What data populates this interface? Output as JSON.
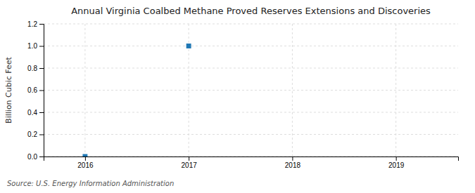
{
  "chart_data": {
    "type": "scatter",
    "title": "Annual Virginia Coalbed Methane Proved Reserves Extensions and Discoveries",
    "ylabel": "Billion Cubic Feet",
    "annotations": [
      "Source: U.S. Energy Information Administration"
    ],
    "x": [
      2016,
      2017
    ],
    "values": [
      0.0,
      1.0
    ],
    "xlim": [
      2015.6,
      2019.6
    ],
    "ylim": [
      0.0,
      1.2
    ],
    "xticks": [
      2016,
      2017,
      2018,
      2019
    ],
    "yticks": [
      {
        "value": 0.0,
        "label": "0.0"
      },
      0.2,
      0.4,
      0.6,
      0.8,
      {
        "value": 1.0,
        "label": "1.0"
      },
      1.2
    ],
    "marker": "square",
    "grid": true
  }
}
